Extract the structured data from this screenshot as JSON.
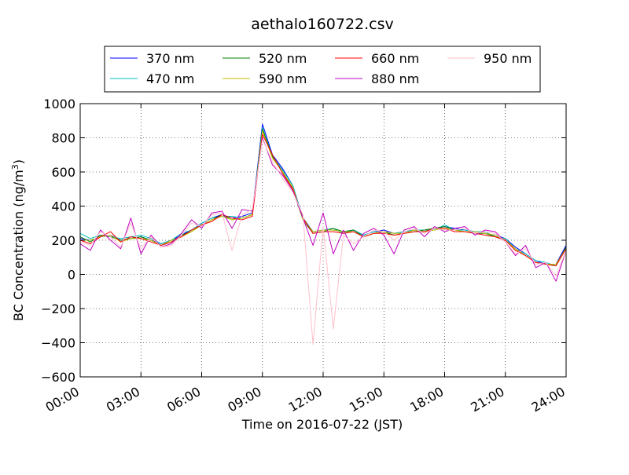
{
  "chart_data": {
    "type": "line",
    "title": "aethalo160722.csv",
    "xlabel": "Time on 2016-07-22 (JST)",
    "ylabel": "BC Concentration (ng/m",
    "ylabel_sup": "3",
    "ylabel_tail": ")",
    "x_unit": "hours since 00:00 JST",
    "xlim": [
      0,
      24
    ],
    "ylim": [
      -600,
      1000
    ],
    "grid": true,
    "legend_position": "top",
    "x_ticks": [
      {
        "value": 0,
        "label": "00:00"
      },
      {
        "value": 3,
        "label": "03:00"
      },
      {
        "value": 6,
        "label": "06:00"
      },
      {
        "value": 9,
        "label": "09:00"
      },
      {
        "value": 12,
        "label": "12:00"
      },
      {
        "value": 15,
        "label": "15:00"
      },
      {
        "value": 18,
        "label": "18:00"
      },
      {
        "value": 21,
        "label": "21:00"
      },
      {
        "value": 24,
        "label": "24:00"
      }
    ],
    "y_ticks": [
      {
        "value": -600,
        "label": "−600"
      },
      {
        "value": -400,
        "label": "−400"
      },
      {
        "value": -200,
        "label": "−200"
      },
      {
        "value": 0,
        "label": "0"
      },
      {
        "value": 200,
        "label": "200"
      },
      {
        "value": 400,
        "label": "400"
      },
      {
        "value": 600,
        "label": "600"
      },
      {
        "value": 800,
        "label": "800"
      },
      {
        "value": 1000,
        "label": "1000"
      }
    ],
    "x": [
      0,
      0.5,
      1,
      1.5,
      2,
      2.5,
      3,
      3.5,
      4,
      4.5,
      5,
      5.5,
      6,
      6.5,
      7,
      7.5,
      8,
      8.5,
      9,
      9.5,
      10,
      10.5,
      11,
      11.5,
      12,
      12.5,
      13,
      13.5,
      14,
      14.5,
      15,
      15.5,
      16,
      16.5,
      17,
      17.5,
      18,
      18.5,
      19,
      19.5,
      20,
      20.5,
      21,
      21.5,
      22,
      22.5,
      23,
      23.5,
      24
    ],
    "series": [
      {
        "name": "370 nm",
        "color": "#0000ff",
        "values": [
          210,
          200,
          220,
          230,
          200,
          210,
          220,
          200,
          180,
          200,
          230,
          260,
          300,
          330,
          350,
          330,
          340,
          360,
          880,
          700,
          620,
          520,
          330,
          250,
          260,
          260,
          250,
          260,
          230,
          250,
          260,
          240,
          250,
          260,
          250,
          270,
          280,
          270,
          260,
          250,
          240,
          230,
          210,
          160,
          120,
          80,
          60,
          60,
          170
        ]
      },
      {
        "name": "470 nm",
        "color": "#00bfbf",
        "values": [
          240,
          210,
          230,
          220,
          210,
          220,
          230,
          210,
          180,
          200,
          240,
          260,
          300,
          330,
          340,
          340,
          330,
          350,
          860,
          690,
          610,
          520,
          330,
          250,
          260,
          270,
          240,
          260,
          230,
          250,
          250,
          240,
          250,
          260,
          260,
          260,
          290,
          260,
          260,
          250,
          250,
          220,
          210,
          150,
          120,
          80,
          70,
          50,
          160
        ]
      },
      {
        "name": "520 nm",
        "color": "#008000",
        "values": [
          220,
          190,
          230,
          220,
          200,
          210,
          220,
          200,
          170,
          190,
          230,
          250,
          290,
          320,
          350,
          320,
          330,
          350,
          850,
          690,
          600,
          500,
          320,
          240,
          250,
          270,
          250,
          260,
          220,
          240,
          250,
          230,
          240,
          250,
          260,
          270,
          280,
          260,
          250,
          240,
          240,
          220,
          200,
          150,
          110,
          70,
          60,
          50,
          160
        ]
      },
      {
        "name": "590 nm",
        "color": "#bfbf00",
        "values": [
          200,
          200,
          220,
          230,
          190,
          210,
          210,
          200,
          170,
          200,
          220,
          250,
          290,
          320,
          340,
          320,
          330,
          350,
          840,
          680,
          600,
          510,
          320,
          250,
          260,
          260,
          250,
          250,
          220,
          240,
          250,
          240,
          240,
          260,
          250,
          260,
          270,
          260,
          250,
          250,
          240,
          230,
          200,
          150,
          110,
          70,
          60,
          60,
          150
        ]
      },
      {
        "name": "660 nm",
        "color": "#ff0000",
        "values": [
          200,
          180,
          220,
          250,
          190,
          220,
          210,
          190,
          170,
          190,
          220,
          260,
          290,
          310,
          350,
          330,
          320,
          340,
          820,
          700,
          590,
          500,
          330,
          240,
          250,
          250,
          240,
          250,
          220,
          240,
          240,
          230,
          240,
          250,
          250,
          270,
          270,
          250,
          250,
          240,
          230,
          220,
          200,
          140,
          110,
          70,
          60,
          50,
          150
        ]
      },
      {
        "name": "880 nm",
        "color": "#bf00bf",
        "values": [
          180,
          140,
          260,
          200,
          150,
          330,
          120,
          230,
          160,
          180,
          240,
          320,
          270,
          360,
          370,
          270,
          380,
          370,
          800,
          640,
          580,
          490,
          330,
          170,
          360,
          120,
          260,
          140,
          240,
          270,
          230,
          120,
          260,
          280,
          220,
          280,
          250,
          270,
          280,
          230,
          260,
          250,
          190,
          110,
          170,
          40,
          70,
          -40,
          140
        ]
      },
      {
        "name": "950 nm",
        "color": "#ffc0cb",
        "values": [
          190,
          170,
          250,
          220,
          160,
          300,
          150,
          220,
          160,
          170,
          230,
          300,
          280,
          350,
          360,
          140,
          350,
          380,
          790,
          660,
          560,
          480,
          350,
          -410,
          280,
          -320,
          230,
          180,
          220,
          260,
          250,
          200,
          250,
          270,
          240,
          270,
          260,
          260,
          270,
          240,
          250,
          240,
          190,
          120,
          150,
          60,
          70,
          -10,
          140
        ]
      }
    ]
  }
}
